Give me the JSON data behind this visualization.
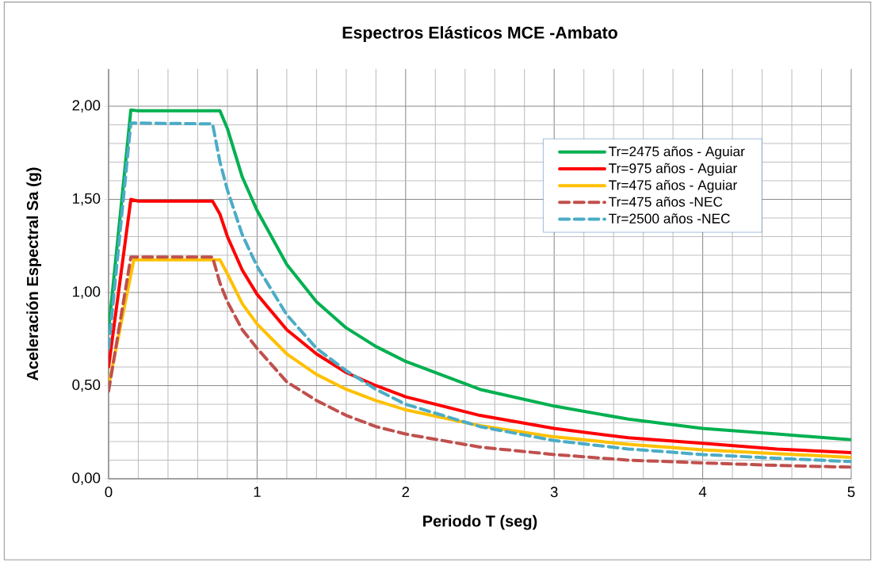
{
  "chart_data": {
    "type": "line",
    "title": "Espectros Elásticos MCE -Ambato",
    "xlabel": "Periodo  T (seg)",
    "ylabel": "Aceleración Espectral Sa (g)",
    "xlim": [
      0,
      5
    ],
    "ylim": [
      0,
      2.2
    ],
    "xticks": [
      0,
      1,
      2,
      3,
      4,
      5
    ],
    "yticks": [
      {
        "value": 0,
        "label": "0,00"
      },
      {
        "value": 0.5,
        "label": "0,50"
      },
      {
        "value": 1,
        "label": "1,00"
      },
      {
        "value": 1.5,
        "label": "1,50"
      },
      {
        "value": 2,
        "label": "2,00"
      }
    ],
    "grid": true,
    "legend": "top right",
    "series": [
      {
        "name": "Tr=2475 años - Aguiar",
        "color": "#00b050",
        "line_style": "solid",
        "x": [
          0,
          0.15,
          0.2,
          0.7,
          0.75,
          0.8,
          0.9,
          1,
          1.2,
          1.4,
          1.6,
          1.8,
          2,
          2.5,
          3,
          3.5,
          4,
          4.5,
          5
        ],
        "values": [
          0.8,
          1.98,
          1.975,
          1.975,
          1.975,
          1.88,
          1.62,
          1.44,
          1.15,
          0.95,
          0.81,
          0.71,
          0.63,
          0.48,
          0.39,
          0.32,
          0.27,
          0.24,
          0.21
        ]
      },
      {
        "name": "Tr=975 años - Aguiar",
        "color": "#ff0000",
        "line_style": "solid",
        "x": [
          0,
          0.15,
          0.2,
          0.7,
          0.75,
          0.8,
          0.9,
          1,
          1.2,
          1.4,
          1.6,
          1.8,
          2,
          2.5,
          3,
          3.5,
          4,
          4.5,
          5
        ],
        "values": [
          0.6,
          1.5,
          1.49,
          1.49,
          1.42,
          1.3,
          1.12,
          0.99,
          0.8,
          0.67,
          0.57,
          0.5,
          0.44,
          0.34,
          0.27,
          0.22,
          0.19,
          0.16,
          0.14
        ]
      },
      {
        "name": "Tr=475 años - Aguiar",
        "color": "#ffc000",
        "line_style": "solid",
        "x": [
          0,
          0.17,
          0.75,
          0.8,
          0.9,
          1,
          1.2,
          1.4,
          1.6,
          1.8,
          2,
          2.5,
          3,
          3.5,
          4,
          4.5,
          5
        ],
        "values": [
          0.5,
          1.175,
          1.175,
          1.1,
          0.94,
          0.83,
          0.67,
          0.56,
          0.48,
          0.42,
          0.37,
          0.285,
          0.225,
          0.185,
          0.155,
          0.135,
          0.115
        ]
      },
      {
        "name": "Tr=475 años -NEC",
        "color": "#c0504d",
        "line_style": "dashed",
        "x": [
          0,
          0.15,
          0.7,
          0.75,
          0.8,
          0.9,
          1,
          1.2,
          1.4,
          1.6,
          1.8,
          2,
          2.5,
          3,
          3.5,
          4,
          4.5,
          5
        ],
        "values": [
          0.47,
          1.19,
          1.19,
          1.05,
          0.95,
          0.8,
          0.7,
          0.52,
          0.42,
          0.34,
          0.28,
          0.24,
          0.17,
          0.13,
          0.1,
          0.085,
          0.072,
          0.062
        ]
      },
      {
        "name": "Tr=2500 años -NEC",
        "color": "#4bacc6",
        "line_style": "dashed",
        "x": [
          0,
          0.15,
          0.7,
          0.75,
          0.8,
          0.9,
          1,
          1.2,
          1.4,
          1.6,
          1.8,
          2,
          2.5,
          3,
          3.5,
          4,
          4.5,
          5
        ],
        "values": [
          0.7,
          1.91,
          1.905,
          1.7,
          1.55,
          1.31,
          1.14,
          0.88,
          0.7,
          0.58,
          0.48,
          0.4,
          0.28,
          0.205,
          0.16,
          0.13,
          0.11,
          0.092
        ]
      }
    ]
  }
}
